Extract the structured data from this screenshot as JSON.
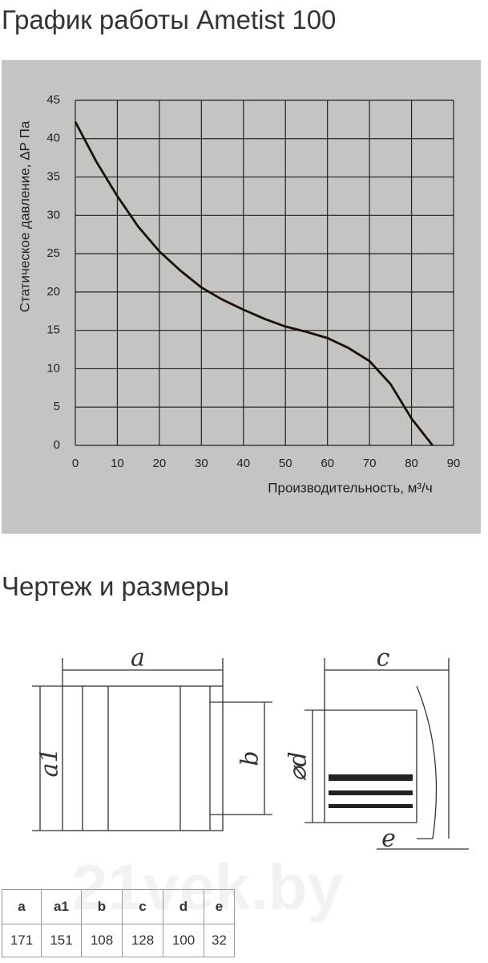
{
  "chart_data": {
    "type": "line",
    "title": "График работы Ametist 100",
    "x_label": "Производительность, м³/ч",
    "y_label": "Статическое давление, ΔР Па",
    "x": [
      0,
      5,
      10,
      15,
      20,
      25,
      30,
      35,
      40,
      45,
      50,
      55,
      60,
      65,
      70,
      75,
      80,
      85
    ],
    "values": [
      42.2,
      37,
      32.5,
      28.5,
      25.3,
      22.8,
      20.6,
      19,
      17.7,
      16.5,
      15.5,
      14.8,
      14,
      12.7,
      11,
      8,
      3.5,
      0
    ],
    "color": "#1a0e08",
    "xlim": [
      0,
      90
    ],
    "xticks": [
      0,
      10,
      20,
      30,
      40,
      50,
      60,
      70,
      80,
      90
    ],
    "ylim": [
      0,
      45
    ],
    "yticks": [
      0,
      5,
      10,
      15,
      20,
      25,
      30,
      35,
      40,
      45
    ],
    "grid": true
  },
  "section_title": "Чертеж и размеры",
  "drawing": {
    "labels": [
      "a",
      "a1",
      "b",
      "c",
      "⌀d",
      "e"
    ]
  },
  "watermark": "21vek.by",
  "table": {
    "header": [
      "a",
      "a1",
      "b",
      "c",
      "d",
      "e"
    ],
    "rows": [
      [
        "171",
        "151",
        "108",
        "128",
        "100",
        "32"
      ]
    ]
  }
}
